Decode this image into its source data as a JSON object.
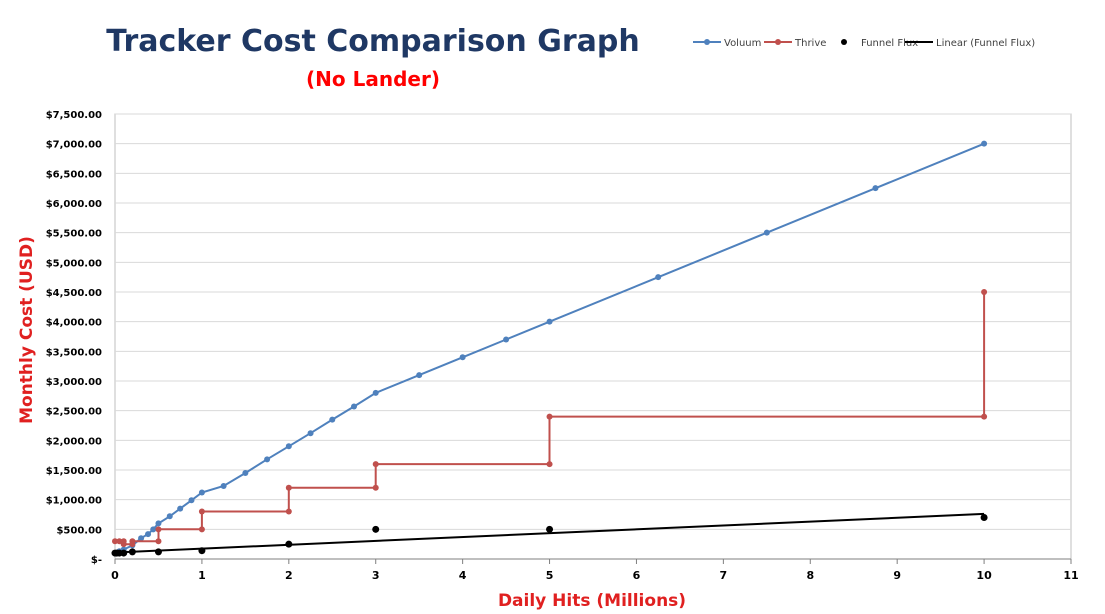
{
  "chart_data": {
    "type": "line",
    "title": "Tracker Cost Comparison Graph",
    "subtitle": "(No Lander)",
    "xlabel": "Daily Hits (Millions)",
    "ylabel": "Monthly Cost (USD)",
    "xlim": [
      0,
      11
    ],
    "ylim": [
      0,
      7500
    ],
    "x_ticks": [
      "0",
      "1",
      "2",
      "3",
      "4",
      "5",
      "6",
      "7",
      "8",
      "9",
      "10",
      "11"
    ],
    "y_ticks": [
      "$-",
      "$500.00",
      "$1,000.00",
      "$1,500.00",
      "$2,000.00",
      "$2,500.00",
      "$3,000.00",
      "$3,500.00",
      "$4,000.00",
      "$4,500.00",
      "$5,000.00",
      "$5,500.00",
      "$6,000.00",
      "$6,500.00",
      "$7,000.00",
      "$7,500.00"
    ],
    "grid": "horizontal",
    "legend_position": "top-right",
    "series": [
      {
        "name": "Voluum",
        "kind": "line-markers",
        "color": "#4f81bd",
        "points": [
          [
            0,
            100
          ],
          [
            0.05,
            130
          ],
          [
            0.1,
            160
          ],
          [
            0.2,
            230
          ],
          [
            0.3,
            350
          ],
          [
            0.38,
            420
          ],
          [
            0.44,
            500
          ],
          [
            0.5,
            600
          ],
          [
            0.63,
            720
          ],
          [
            0.75,
            850
          ],
          [
            0.88,
            990
          ],
          [
            1.0,
            1120
          ],
          [
            1.25,
            1230
          ],
          [
            1.5,
            1450
          ],
          [
            1.75,
            1680
          ],
          [
            2.0,
            1900
          ],
          [
            2.25,
            2120
          ],
          [
            2.5,
            2350
          ],
          [
            2.75,
            2570
          ],
          [
            3.0,
            2800
          ],
          [
            3.5,
            3100
          ],
          [
            4.0,
            3400
          ],
          [
            4.5,
            3700
          ],
          [
            5.0,
            4000
          ],
          [
            6.25,
            4750
          ],
          [
            7.5,
            5500
          ],
          [
            8.75,
            6250
          ],
          [
            10,
            7000
          ]
        ]
      },
      {
        "name": "Thrive",
        "kind": "step-markers",
        "color": "#c0504d",
        "points": [
          [
            0,
            300
          ],
          [
            0.05,
            300
          ],
          [
            0.1,
            300
          ],
          [
            0.1,
            250
          ],
          [
            0.2,
            250
          ],
          [
            0.2,
            300
          ],
          [
            0.5,
            300
          ],
          [
            0.5,
            500
          ],
          [
            1,
            500
          ],
          [
            1,
            800
          ],
          [
            2,
            800
          ],
          [
            2,
            1200
          ],
          [
            3,
            1200
          ],
          [
            3,
            1600
          ],
          [
            5,
            1600
          ],
          [
            5,
            2400
          ],
          [
            10,
            2400
          ],
          [
            10,
            4500
          ]
        ]
      },
      {
        "name": "Funnel Flux",
        "kind": "markers",
        "color": "#000000",
        "points": [
          [
            0,
            100
          ],
          [
            0.02,
            100
          ],
          [
            0.05,
            100
          ],
          [
            0.1,
            100
          ],
          [
            0.2,
            120
          ],
          [
            0.5,
            120
          ],
          [
            1,
            140
          ],
          [
            2,
            250
          ],
          [
            3,
            500
          ],
          [
            5,
            500
          ],
          [
            10,
            700
          ]
        ]
      },
      {
        "name": "Linear (Funnel Flux)",
        "kind": "trendline",
        "color": "#000000",
        "points": [
          [
            0,
            110
          ],
          [
            10,
            760
          ]
        ]
      }
    ]
  }
}
